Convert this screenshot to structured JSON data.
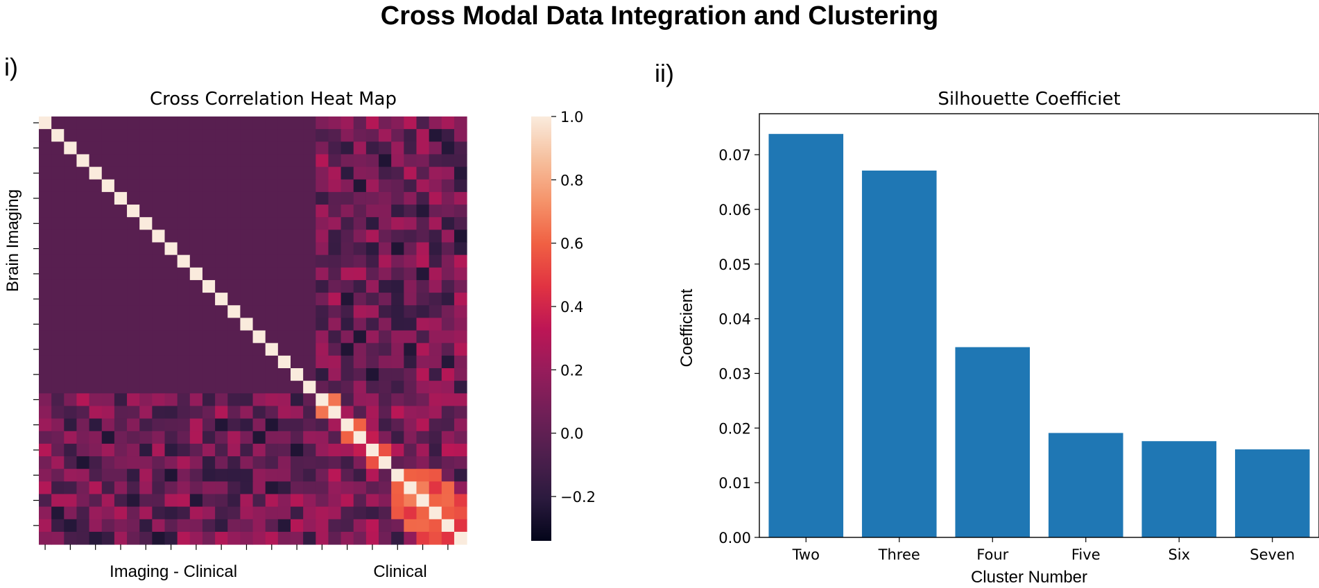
{
  "figure": {
    "title": "Cross Modal Data Integration and Clustering",
    "panel_i_label": "i)",
    "panel_ii_label": "ii)"
  },
  "chart_data": [
    {
      "type": "heatmap",
      "title": "Cross Correlation Heat Map",
      "ylabel": "Brain Imaging",
      "xlabels": [
        "Imaging - Clinical",
        "Clinical"
      ],
      "n_rows": 34,
      "n_cols": 34,
      "n_imaging": 22,
      "imaging_offdiag_value": -0.03,
      "clinical_diag_block_values": [
        0.65,
        0.6,
        0.55,
        0.7,
        0.6
      ],
      "colorbar": {
        "vmin": -0.34,
        "vmax": 1.0,
        "ticks": [
          1.0,
          0.8,
          0.6,
          0.4,
          0.2,
          0.0,
          -0.2
        ],
        "tick_labels": [
          "1.0",
          "0.8",
          "0.6",
          "0.4",
          "0.2",
          "0.0",
          "−0.2"
        ]
      },
      "colors": [
        "#03051a",
        "#2b1a3e",
        "#4d1f4d",
        "#701f57",
        "#961c5b",
        "#bd1655",
        "#e13342",
        "#f06043",
        "#f5936a",
        "#f6c09e",
        "#faebdd"
      ]
    },
    {
      "type": "bar",
      "title": "Silhouette Coefficiet",
      "xlabel": "Cluster Number",
      "ylabel": "Coefficient",
      "categories": [
        "Two",
        "Three",
        "Four",
        "Five",
        "Six",
        "Seven"
      ],
      "values": [
        0.0738,
        0.0671,
        0.0348,
        0.0191,
        0.0176,
        0.0161
      ],
      "ylim": [
        0,
        0.0775
      ],
      "yticks": [
        0.0,
        0.01,
        0.02,
        0.03,
        0.04,
        0.05,
        0.06,
        0.07
      ],
      "ytick_labels": [
        "0.00",
        "0.01",
        "0.02",
        "0.03",
        "0.04",
        "0.05",
        "0.06",
        "0.07"
      ],
      "bar_color": "#1f77b4"
    }
  ]
}
